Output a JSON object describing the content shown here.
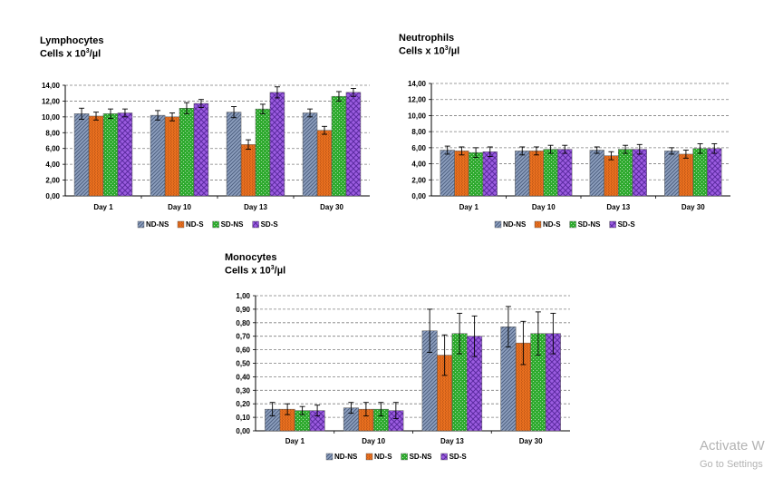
{
  "watermark": {
    "line1": "Activate W",
    "line2": "Go to Settings"
  },
  "legend": {
    "series_colors": [
      "#8ea0bf",
      "#e86f1f",
      "#2eaa2e",
      "#9b5ce0"
    ]
  },
  "chart_data": [
    {
      "type": "bar",
      "title_line1": "Lymphocytes",
      "title_line2": "Cells x 10",
      "title_sup": "3",
      "title_unit": "/µl",
      "categories": [
        "Day 1",
        "Day 10",
        "Day 13",
        "Day 30"
      ],
      "ylim": [
        0,
        14
      ],
      "yticks": [
        "0,00",
        "2,00",
        "4,00",
        "6,00",
        "8,00",
        "10,00",
        "12,00",
        "14,00"
      ],
      "grid": true,
      "legend_position": "bottom",
      "series": [
        {
          "name": "ND-NS",
          "values": [
            10.4,
            10.2,
            10.6,
            10.5
          ],
          "errors": [
            0.7,
            0.6,
            0.7,
            0.5
          ]
        },
        {
          "name": "ND-S",
          "values": [
            10.1,
            10.0,
            6.5,
            8.3
          ],
          "errors": [
            0.5,
            0.5,
            0.6,
            0.5
          ]
        },
        {
          "name": "SD-NS",
          "values": [
            10.4,
            11.1,
            11.0,
            12.6
          ],
          "errors": [
            0.6,
            0.7,
            0.6,
            0.6
          ]
        },
        {
          "name": "SD-S",
          "values": [
            10.5,
            11.7,
            13.1,
            13.1
          ],
          "errors": [
            0.5,
            0.5,
            0.7,
            0.5
          ]
        }
      ]
    },
    {
      "type": "bar",
      "title_line1": "Neutrophils",
      "title_line2": "Cells x 10",
      "title_sup": "3",
      "title_unit": "/µl",
      "categories": [
        "Day 1",
        "Day 10",
        "Day 13",
        "Day 30"
      ],
      "ylim": [
        0,
        14
      ],
      "yticks": [
        "0,00",
        "2,00",
        "4,00",
        "6,00",
        "8,00",
        "10,00",
        "12,00",
        "14,00"
      ],
      "grid": true,
      "legend_position": "bottom",
      "series": [
        {
          "name": "ND-NS",
          "values": [
            5.7,
            5.6,
            5.7,
            5.6
          ],
          "errors": [
            0.5,
            0.5,
            0.4,
            0.4
          ]
        },
        {
          "name": "ND-S",
          "values": [
            5.6,
            5.6,
            5.0,
            5.2
          ],
          "errors": [
            0.5,
            0.5,
            0.5,
            0.5
          ]
        },
        {
          "name": "SD-NS",
          "values": [
            5.4,
            5.8,
            5.8,
            5.9
          ],
          "errors": [
            0.6,
            0.5,
            0.5,
            0.6
          ]
        },
        {
          "name": "SD-S",
          "values": [
            5.5,
            5.8,
            5.8,
            5.9
          ],
          "errors": [
            0.6,
            0.5,
            0.6,
            0.6
          ]
        }
      ]
    },
    {
      "type": "bar",
      "title_line1": "Monocytes",
      "title_line2": "Cells x 10",
      "title_sup": "3",
      "title_unit": "/µl",
      "categories": [
        "Day 1",
        "Day 10",
        "Day 13",
        "Day 30"
      ],
      "ylim": [
        0,
        1
      ],
      "yticks": [
        "0,00",
        "0,10",
        "0,20",
        "0,30",
        "0,40",
        "0,50",
        "0,60",
        "0,70",
        "0,80",
        "0,90",
        "1,00"
      ],
      "grid": true,
      "legend_position": "bottom",
      "series": [
        {
          "name": "ND-NS",
          "values": [
            0.16,
            0.17,
            0.74,
            0.77
          ],
          "errors": [
            0.05,
            0.04,
            0.16,
            0.15
          ]
        },
        {
          "name": "ND-S",
          "values": [
            0.16,
            0.16,
            0.56,
            0.65
          ],
          "errors": [
            0.04,
            0.05,
            0.15,
            0.16
          ]
        },
        {
          "name": "SD-NS",
          "values": [
            0.15,
            0.16,
            0.72,
            0.72
          ],
          "errors": [
            0.03,
            0.05,
            0.15,
            0.16
          ]
        },
        {
          "name": "SD-S",
          "values": [
            0.15,
            0.15,
            0.7,
            0.72
          ],
          "errors": [
            0.04,
            0.06,
            0.15,
            0.15
          ]
        }
      ]
    }
  ]
}
